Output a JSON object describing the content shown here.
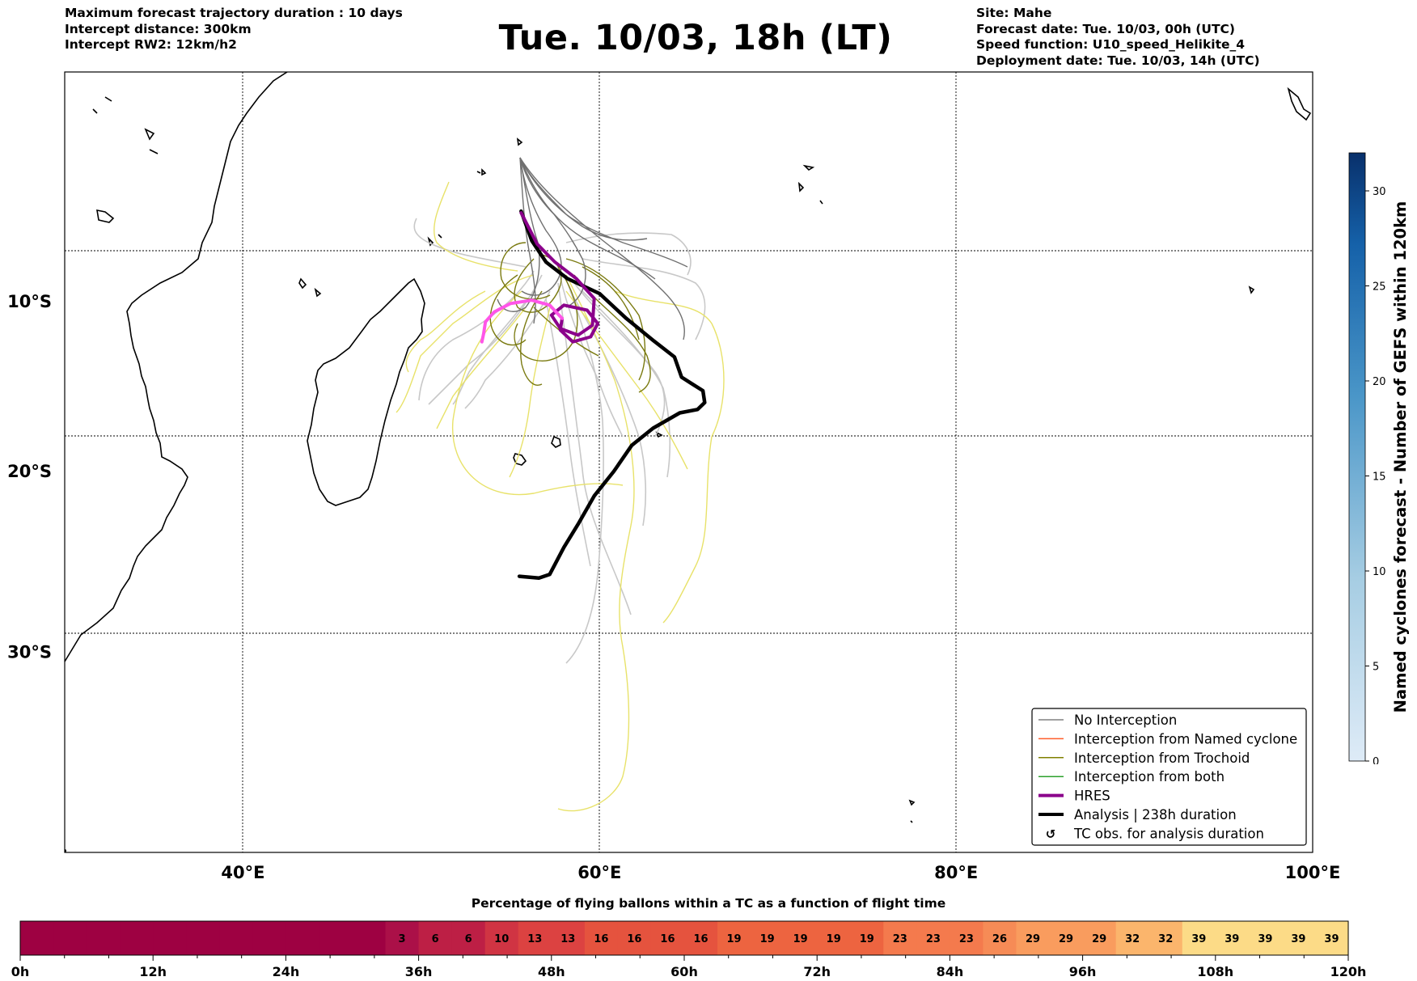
{
  "header": {
    "left_lines": [
      "Maximum forecast trajectory duration : 10 days",
      "Intercept distance: 300km",
      "Intercept RW2: 12km/h2"
    ],
    "title": "Tue. 10/03, 18h (LT)",
    "right_lines": [
      "Site: Mahe",
      "Forecast date: Tue. 10/03, 00h (UTC)",
      "Speed function: U10_speed_Helikite_4",
      "Deployment date: Tue. 10/03, 14h (UTC)"
    ]
  },
  "chart_data": [
    {
      "type": "line",
      "subtype": "trajectory-map",
      "xlim": [
        30,
        100
      ],
      "ylim": [
        -40,
        4
      ],
      "x_ticks": [
        {
          "value": 40,
          "label": "40°E"
        },
        {
          "value": 60,
          "label": "60°E"
        },
        {
          "value": 80,
          "label": "80°E"
        },
        {
          "value": 100,
          "label": "100°E"
        }
      ],
      "y_ticks": [
        {
          "value": -10,
          "label": "10°S"
        },
        {
          "value": -20,
          "label": "20°S"
        },
        {
          "value": -30,
          "label": "30°S"
        }
      ],
      "grid": true,
      "legend_position": "lower-right",
      "legend": [
        {
          "label": "No Interception",
          "color": "#808080",
          "style": "thin"
        },
        {
          "label": "Interception from Named cyclone",
          "color": "#ff5e2b",
          "style": "thin"
        },
        {
          "label": "Interception from Trochoid",
          "color": "#808000",
          "style": "thin"
        },
        {
          "label": "Interception from both",
          "color": "#2ca02c",
          "style": "thin"
        },
        {
          "label": "HRES",
          "color": "#8b008b",
          "style": "thick"
        },
        {
          "label": "Analysis | 238h duration",
          "color": "#000000",
          "style": "thick"
        },
        {
          "label": "TC obs. for analysis duration",
          "color": "#000000",
          "style": "marker",
          "marker": "↺"
        }
      ],
      "series": [
        {
          "name": "Analysis | 238h duration",
          "color": "#000000",
          "points": [
            [
              55.6,
              -4.5
            ],
            [
              56.2,
              -6.3
            ],
            [
              57.0,
              -7.6
            ],
            [
              58.2,
              -8.6
            ],
            [
              60.0,
              -9.5
            ],
            [
              61.5,
              -11.0
            ],
            [
              63.0,
              -12.3
            ],
            [
              64.2,
              -13.3
            ],
            [
              64.6,
              -14.5
            ],
            [
              65.2,
              -14.9
            ],
            [
              65.8,
              -15.3
            ],
            [
              65.9,
              -16.0
            ],
            [
              65.5,
              -16.4
            ],
            [
              64.5,
              -16.6
            ],
            [
              63.0,
              -17.5
            ],
            [
              61.8,
              -18.5
            ],
            [
              60.8,
              -20.0
            ],
            [
              59.7,
              -21.4
            ],
            [
              58.8,
              -23.0
            ],
            [
              58.0,
              -24.3
            ],
            [
              57.2,
              -25.8
            ],
            [
              56.6,
              -26.0
            ],
            [
              55.5,
              -25.9
            ]
          ]
        },
        {
          "name": "HRES",
          "color": "#8b008b",
          "points": [
            [
              55.6,
              -4.6
            ],
            [
              56.5,
              -6.5
            ],
            [
              57.5,
              -7.6
            ],
            [
              58.7,
              -8.6
            ],
            [
              59.7,
              -9.8
            ],
            [
              59.6,
              -11.4
            ],
            [
              58.8,
              -12.0
            ],
            [
              57.8,
              -11.6
            ],
            [
              57.3,
              -10.8
            ],
            [
              58.0,
              -10.2
            ],
            [
              59.3,
              -10.5
            ],
            [
              59.9,
              -11.3
            ],
            [
              59.5,
              -12.1
            ],
            [
              58.5,
              -12.4
            ],
            [
              57.8,
              -11.7
            ],
            [
              57.9,
              -11.0
            ]
          ]
        },
        {
          "name": "HRES (late)",
          "color": "#ff55e8",
          "points": [
            [
              57.9,
              -11.0
            ],
            [
              57.2,
              -10.2
            ],
            [
              56.2,
              -9.9
            ],
            [
              55.0,
              -10.1
            ],
            [
              54.1,
              -10.6
            ],
            [
              53.6,
              -11.2
            ],
            [
              53.5,
              -11.9
            ],
            [
              53.4,
              -12.4
            ]
          ]
        }
      ]
    },
    {
      "type": "heatmap",
      "subtype": "colorbar",
      "label": "Named cyclones forecast - Number of GEFS within 120km",
      "range": [
        0,
        32
      ],
      "ticks": [
        0,
        5,
        10,
        15,
        20,
        25,
        30
      ],
      "colors": [
        "#deebf7",
        "#08306b"
      ]
    },
    {
      "type": "table",
      "subtype": "percentage-strip",
      "title": "Percentage of flying ballons within a TC as a function of flight time",
      "x_range_hours": [
        0,
        120
      ],
      "bin_hours": 3,
      "x_tick_labels": [
        "0h",
        "12h",
        "24h",
        "36h",
        "48h",
        "60h",
        "72h",
        "84h",
        "96h",
        "108h",
        "120h"
      ],
      "values": [
        0,
        0,
        0,
        0,
        0,
        0,
        0,
        0,
        0,
        0,
        0,
        3,
        6,
        6,
        10,
        13,
        13,
        16,
        16,
        16,
        16,
        19,
        19,
        19,
        19,
        19,
        23,
        23,
        23,
        26,
        29,
        29,
        29,
        32,
        32,
        39,
        39,
        39,
        39,
        39
      ],
      "colors": {
        "0": "#9e0142",
        "3": "#ab1048",
        "6": "#bd1f45",
        "10": "#d03443",
        "13": "#dc4241",
        "16": "#e5533e",
        "19": "#ed6440",
        "23": "#f47a4d",
        "26": "#f68b56",
        "29": "#f99c5e",
        "32": "#fbb56c",
        "39": "#fcdb87"
      }
    }
  ]
}
